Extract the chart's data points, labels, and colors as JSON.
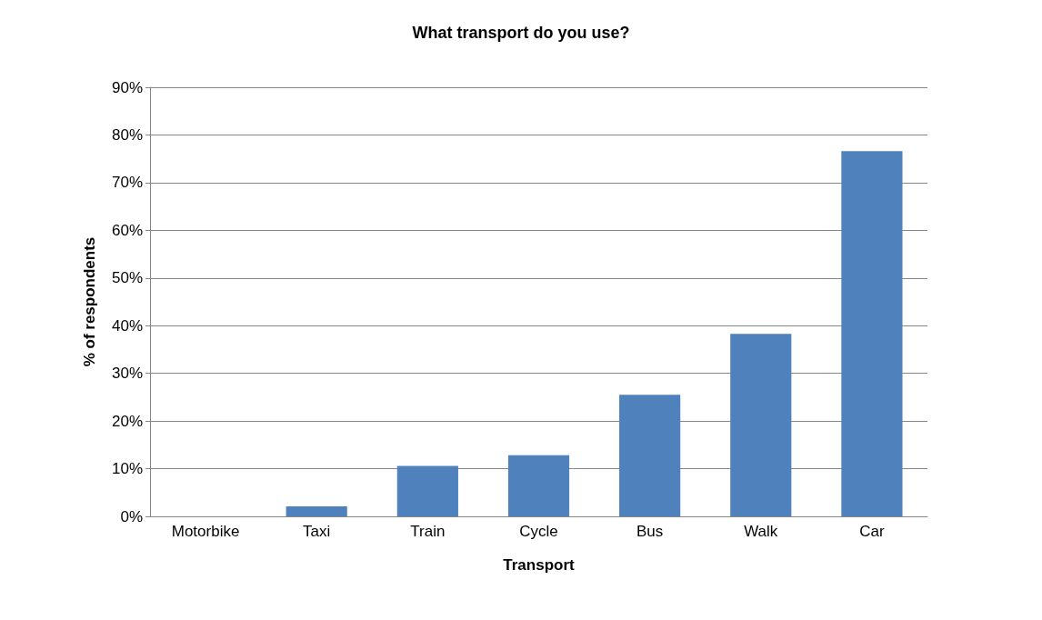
{
  "chart_data": {
    "type": "bar",
    "title": "What transport do you use?",
    "xlabel": "Transport",
    "ylabel": "% of respondents",
    "categories": [
      "Motorbike",
      "Taxi",
      "Train",
      "Cycle",
      "Bus",
      "Walk",
      "Car"
    ],
    "values": [
      0,
      2.1,
      10.6,
      12.8,
      25.5,
      38.3,
      76.6
    ],
    "color": "#4f81bd",
    "ylim": [
      0,
      90
    ],
    "yticks": [
      {
        "value": 0,
        "label": "0%"
      },
      {
        "value": 10,
        "label": "10%"
      },
      {
        "value": 20,
        "label": "20%"
      },
      {
        "value": 30,
        "label": "30%"
      },
      {
        "value": 40,
        "label": "40%"
      },
      {
        "value": 50,
        "label": "50%"
      },
      {
        "value": 60,
        "label": "60%"
      },
      {
        "value": 70,
        "label": "70%"
      },
      {
        "value": 80,
        "label": "80%"
      },
      {
        "value": 90,
        "label": "90%"
      }
    ],
    "grid": "y"
  }
}
